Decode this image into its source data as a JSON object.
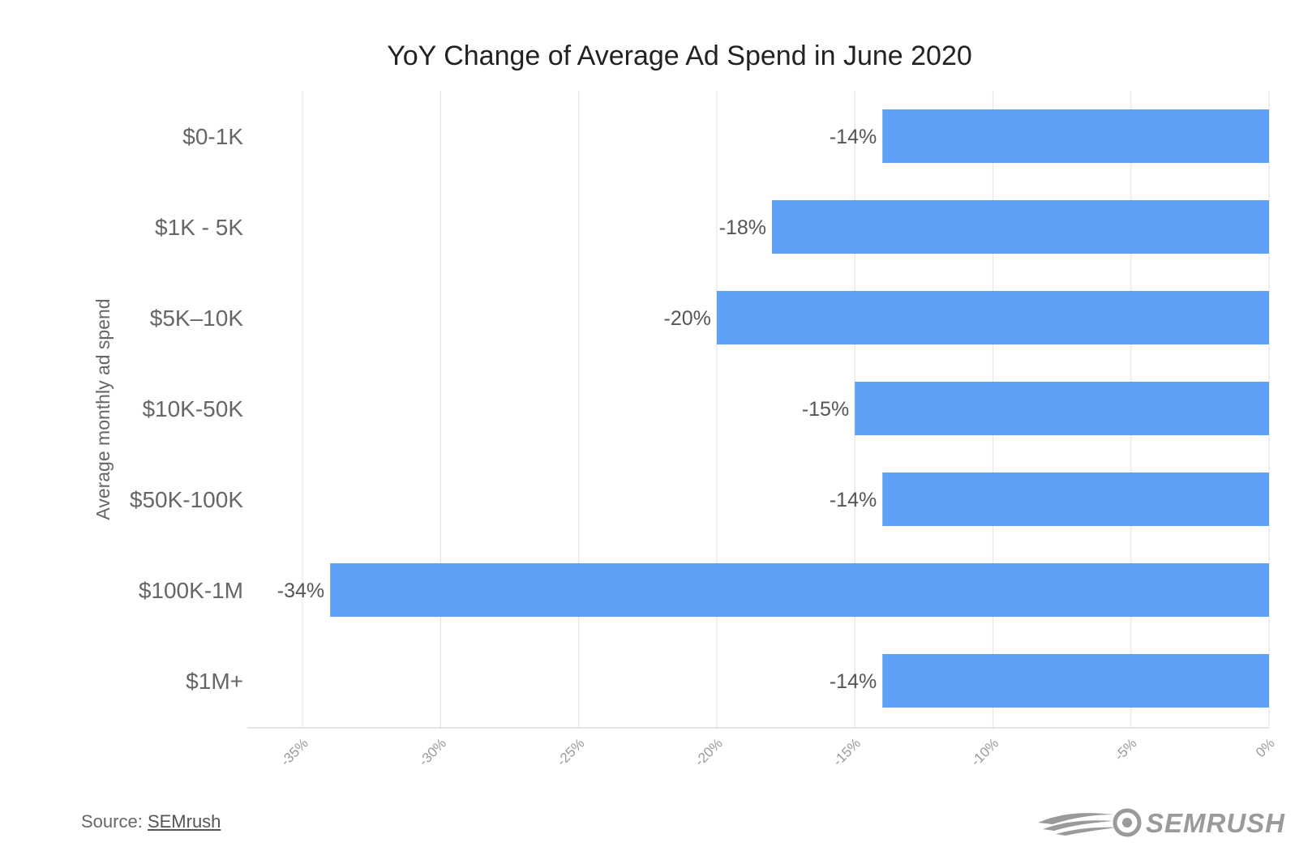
{
  "chart_data": {
    "type": "bar",
    "orientation": "horizontal",
    "title": "YoY Change of Average Ad Spend in June 2020",
    "xlabel": "",
    "ylabel": "Average monthly ad spend",
    "categories": [
      "$0-1K",
      "$1K - 5K",
      "$5K–10K",
      "$10K-50K",
      "$50K-100K",
      "$100K-1M",
      "$1M+"
    ],
    "values": [
      -14,
      -18,
      -20,
      -15,
      -14,
      -34,
      -14
    ],
    "data_labels": [
      "-14%",
      "-18%",
      "-20%",
      "-15%",
      "-14%",
      "-34%",
      "-14%"
    ],
    "x_ticks": [
      -35,
      -30,
      -25,
      -20,
      -15,
      -10,
      -5,
      0
    ],
    "x_tick_labels": [
      "-35%",
      "-30%",
      "-25%",
      "-20%",
      "-15%",
      "-10%",
      "-5%",
      "0%"
    ],
    "xlim": [
      -37,
      0
    ],
    "grid": true,
    "legend": "none",
    "bar_color": "#5fa0f7"
  },
  "footer": {
    "source_prefix": "Source: ",
    "source_link": "SEMrush"
  },
  "brand": {
    "name": "SEMRUSH",
    "icon": "semrush-fireball-icon",
    "color": "#9a9a9a"
  }
}
